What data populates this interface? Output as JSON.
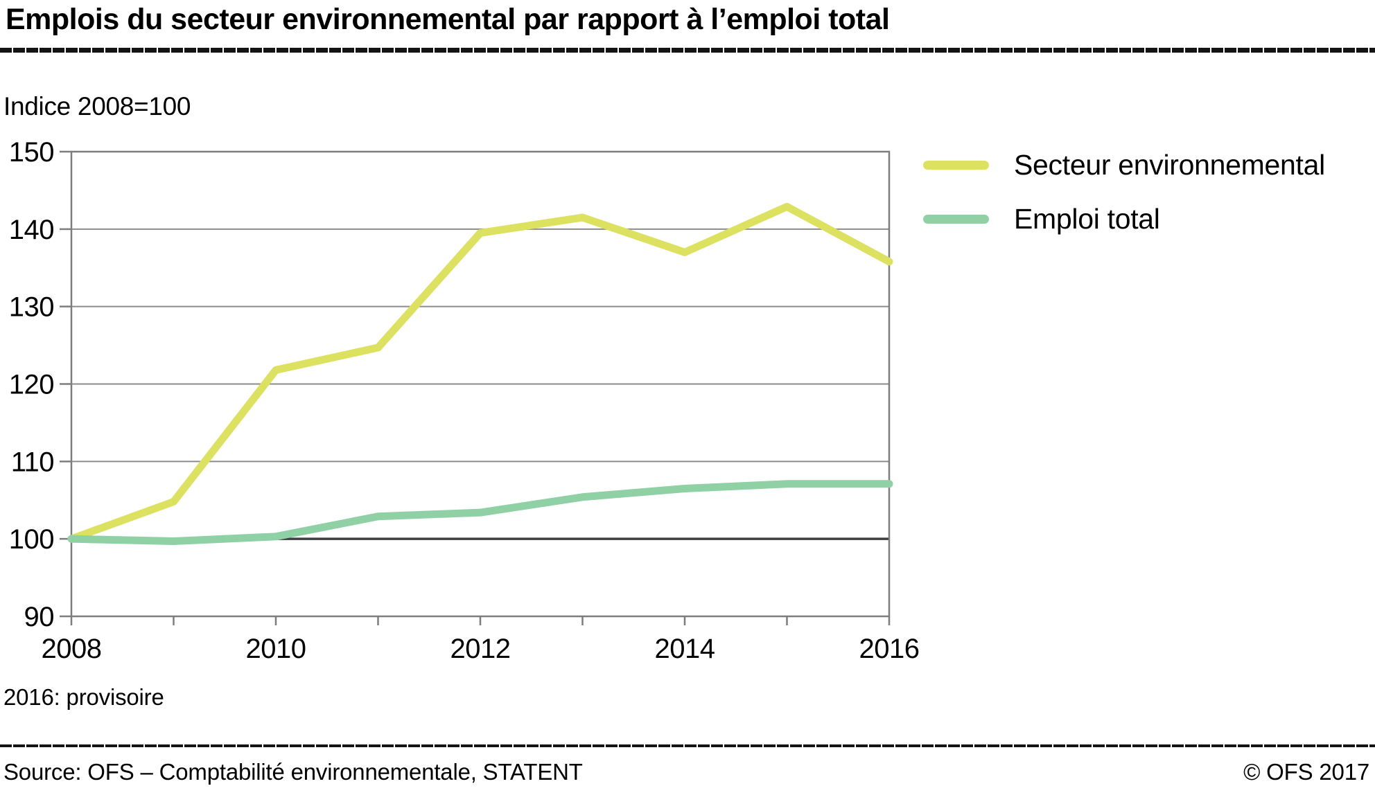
{
  "header": {
    "title": "Emplois du secteur environnemental par rapport à l’emploi total",
    "index_note": "Indice 2008=100"
  },
  "footer": {
    "footnote": "2016: provisoire",
    "source": "Source: OFS – Comptabilité environnementale, STATENT",
    "copyright": "© OFS 2017"
  },
  "colors": {
    "secteur_line": "#dce25f",
    "total_line": "#8fd0a5",
    "grid": "#8c8c8c",
    "frame": "#7d7d7d",
    "baseline": "#3e3e3e",
    "tick": "#7d7d7d",
    "text": "#000000",
    "rule": "#141414"
  },
  "chart_data": {
    "type": "line",
    "title": "Emplois du secteur environnemental par rapport à l’emploi total",
    "subtitle": "Indice 2008=100",
    "xlabel": "",
    "ylabel": "Indice 2008=100",
    "x": [
      2008,
      2009,
      2010,
      2011,
      2012,
      2013,
      2014,
      2015,
      2016
    ],
    "series": [
      {
        "name": "Secteur environnemental",
        "color": "#dce25f",
        "values": [
          100,
          104.8,
          121.8,
          124.7,
          139.5,
          141.5,
          137.0,
          142.9,
          135.8
        ]
      },
      {
        "name": "Emploi total",
        "color": "#8fd0a5",
        "values": [
          100,
          99.7,
          100.3,
          102.9,
          103.4,
          105.4,
          106.5,
          107.1,
          107.1
        ]
      }
    ],
    "ylim": [
      90,
      150
    ],
    "yticks": [
      "90",
      "100",
      "110",
      "120",
      "130",
      "140",
      "150"
    ],
    "ytick_values": [
      90,
      100,
      110,
      120,
      130,
      140,
      150
    ],
    "xtick_values": [
      2008,
      2009,
      2010,
      2011,
      2012,
      2013,
      2014,
      2015,
      2016
    ],
    "xticks_labeled": [
      2008,
      2010,
      2012,
      2014,
      2016
    ],
    "xtick_labels": [
      "2008",
      "2010",
      "2012",
      "2014",
      "2016"
    ],
    "baseline": 100,
    "grid": "horizontal",
    "legend_position": "right-top"
  }
}
